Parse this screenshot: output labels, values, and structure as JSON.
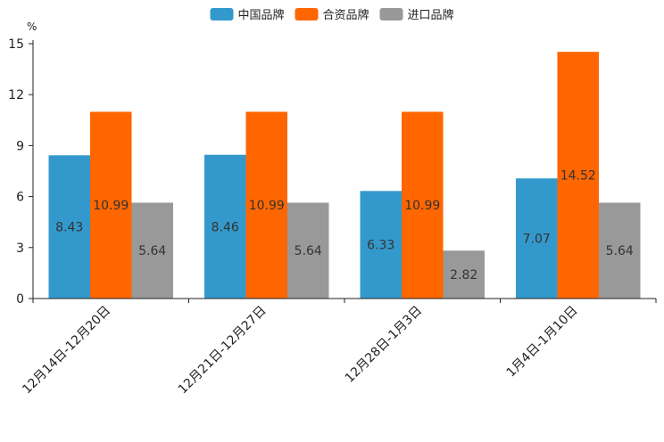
{
  "chart_data": {
    "type": "bar",
    "ylabel": "%",
    "ylim": [
      0,
      15
    ],
    "yticks": [
      0,
      3,
      6,
      9,
      12,
      15
    ],
    "categories": [
      "12月14日-12月20日",
      "12月21日-12月27日",
      "12月28日-1月3日",
      "1月4日-1月10日"
    ],
    "series": [
      {
        "name": "中国品牌",
        "color": "#3399cc",
        "values": [
          8.43,
          8.46,
          6.33,
          7.07
        ],
        "labels": [
          "8.43",
          "8.46",
          "6.33",
          "7.07"
        ]
      },
      {
        "name": "合资品牌",
        "color": "#ff6600",
        "values": [
          10.99,
          10.99,
          10.99,
          14.52
        ],
        "labels": [
          "10.99",
          "10.99",
          "10.99",
          "14.52"
        ]
      },
      {
        "name": "进口品牌",
        "color": "#999999",
        "values": [
          5.64,
          5.64,
          2.82,
          5.64
        ],
        "labels": [
          "5.64",
          "5.64",
          "2.82",
          "5.64"
        ]
      }
    ],
    "legend_position": "top-center",
    "grid": false
  }
}
